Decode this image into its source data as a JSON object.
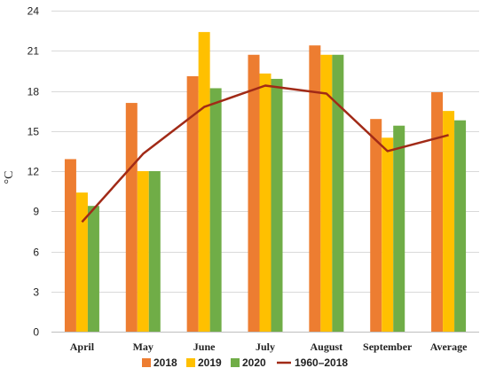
{
  "chart_data": {
    "type": "bar",
    "ylabel": "°C",
    "xlabel": "",
    "ylim": [
      0,
      24
    ],
    "yticks": [
      0,
      3,
      6,
      9,
      12,
      15,
      18,
      21,
      24
    ],
    "grid": true,
    "legend_position": "bottom",
    "categories": [
      "April",
      "May",
      "June",
      "July",
      "August",
      "September",
      "Average"
    ],
    "series": [
      {
        "name": "2018",
        "kind": "bar",
        "color": "#ed7d31",
        "values": [
          12.9,
          17.1,
          19.1,
          20.7,
          21.4,
          15.9,
          17.9
        ]
      },
      {
        "name": "2019",
        "kind": "bar",
        "color": "#ffc000",
        "values": [
          10.4,
          12.0,
          22.4,
          19.3,
          20.7,
          14.5,
          16.5
        ]
      },
      {
        "name": "2020",
        "kind": "bar",
        "color": "#70ad47",
        "values": [
          9.4,
          12.0,
          18.2,
          18.9,
          20.7,
          15.4,
          15.8
        ]
      },
      {
        "name": "1960–2018",
        "kind": "line",
        "color": "#a12a17",
        "values": [
          8.2,
          13.3,
          16.8,
          18.4,
          17.8,
          13.5,
          14.7
        ]
      }
    ]
  }
}
